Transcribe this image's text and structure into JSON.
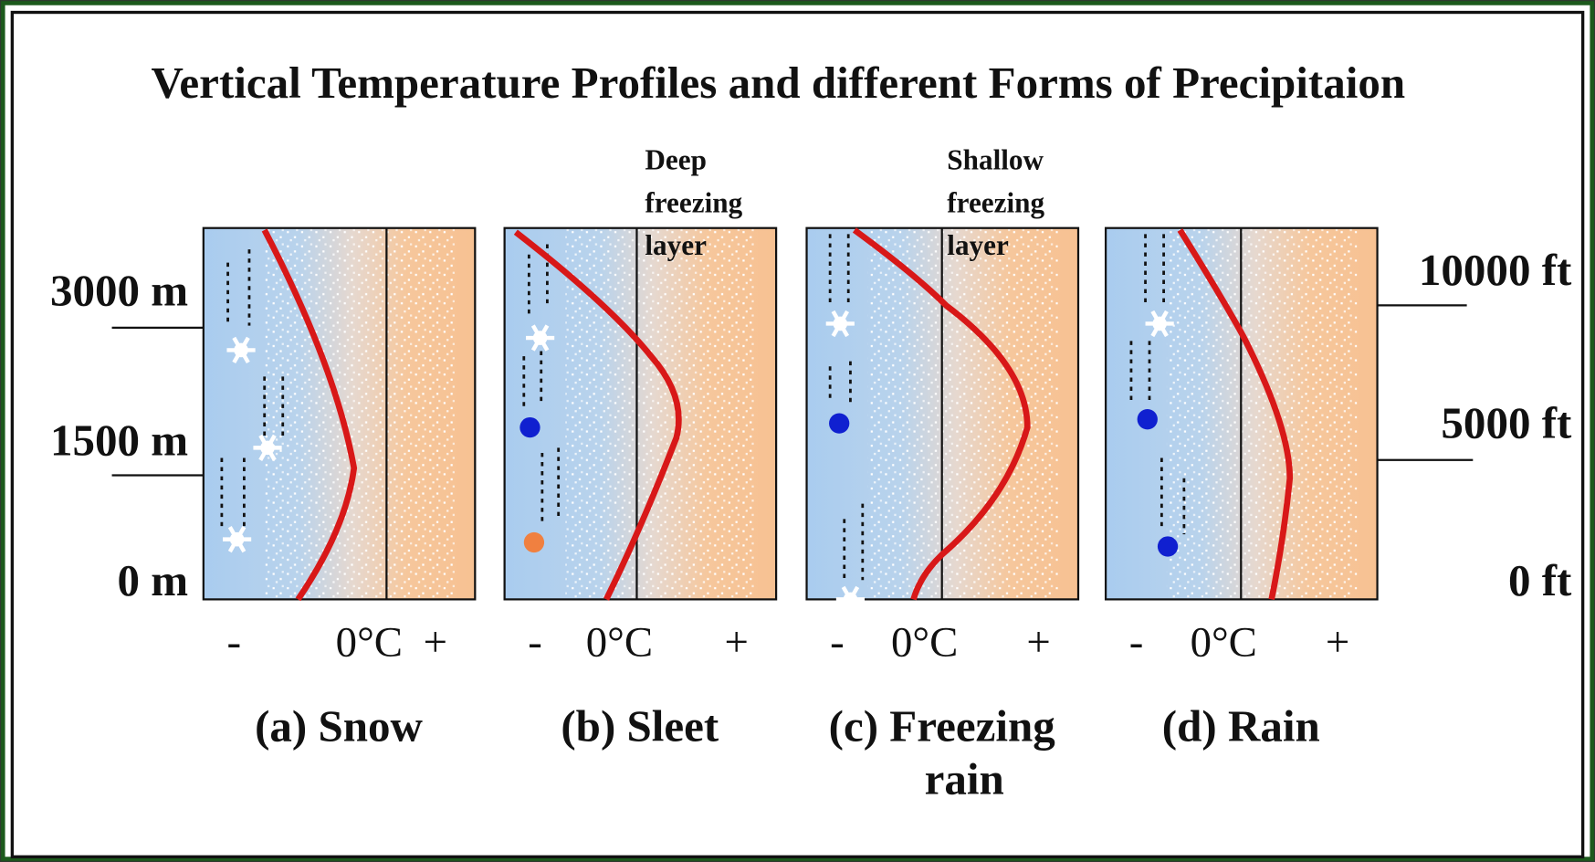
{
  "title": "Vertical Temperature Profiles and different Forms of Precipitaion",
  "left_axis": [
    "3000 m",
    "1500 m",
    "0 m"
  ],
  "right_axis": [
    "10000 ft",
    "5000 ft",
    "0 ft"
  ],
  "panels": [
    {
      "caption": [
        "(a) Snow"
      ],
      "axis": [
        "-",
        "0°C",
        "+"
      ]
    },
    {
      "caption": [
        "(b) Sleet"
      ],
      "axis": [
        "-",
        "0°C",
        "+"
      ],
      "annotation": [
        "Deep",
        "freezing",
        "layer"
      ]
    },
    {
      "caption": [
        "(c) Freezing",
        "rain"
      ],
      "axis": [
        "-",
        "0°C",
        "+"
      ],
      "annotation": [
        "Shallow",
        "freezing",
        "layer"
      ]
    },
    {
      "caption": [
        "(d)  Rain"
      ],
      "axis": [
        "-",
        "0°C",
        "+"
      ]
    }
  ]
}
